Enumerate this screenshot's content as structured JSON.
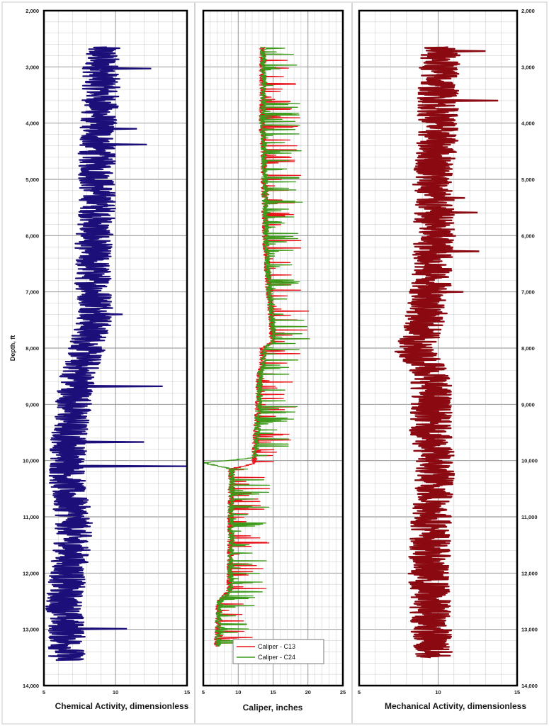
{
  "chart_data": [
    {
      "type": "line",
      "xlabel": "Chemical Activity, dimensionless",
      "ylabel": "Depth, ft",
      "xlim": [
        5,
        15
      ],
      "ylim": [
        2000,
        14000
      ],
      "y_inverted": true,
      "x_ticks": [
        "5",
        "10",
        "15"
      ],
      "y_ticks": [
        "2,000",
        "3,000",
        "4,000",
        "5,000",
        "6,000",
        "7,000",
        "8,000",
        "9,000",
        "10,000",
        "11,000",
        "12,000",
        "13,000",
        "14,000"
      ],
      "grid": true,
      "series": [
        {
          "color": "#1c0f7a",
          "depth": [
            2650,
            3000,
            3500,
            4000,
            4500,
            5000,
            5500,
            6000,
            6500,
            7000,
            7300,
            7600,
            8000,
            8500,
            9000,
            9500,
            10000,
            10500,
            11000,
            11500,
            12000,
            12500,
            13000,
            13550
          ],
          "values": [
            9.0,
            9.0,
            9.0,
            8.8,
            8.7,
            8.7,
            8.8,
            8.5,
            8.4,
            8.5,
            8.8,
            8.4,
            8.0,
            7.4,
            7.1,
            6.8,
            6.7,
            6.6,
            7.1,
            7.0,
            6.7,
            6.4,
            6.6,
            6.6
          ],
          "spikes": [
            {
              "depth": 3030,
              "value": 12.5
            },
            {
              "depth": 4100,
              "value": 11.5
            },
            {
              "depth": 4380,
              "value": 12.2
            },
            {
              "depth": 7400,
              "value": 10.5
            },
            {
              "depth": 8680,
              "value": 13.3
            },
            {
              "depth": 9670,
              "value": 12.0
            },
            {
              "depth": 10100,
              "value": 15.0
            },
            {
              "depth": 12990,
              "value": 10.8
            }
          ]
        }
      ]
    },
    {
      "type": "line",
      "xlabel": "Caliper, inches",
      "xlim": [
        5,
        25
      ],
      "ylim": [
        2000,
        14000
      ],
      "y_inverted": true,
      "x_ticks": [
        "5",
        "10",
        "15",
        "20",
        "25"
      ],
      "grid": true,
      "legend": {
        "placement": "bottom-right"
      },
      "series": [
        {
          "name": "Caliper - C13",
          "color": "#e8141c",
          "depth": [
            2650,
            3000,
            3500,
            4000,
            4500,
            5000,
            5500,
            6000,
            6500,
            7000,
            7500,
            7900,
            8000,
            8300,
            8500,
            9000,
            9500,
            9950,
            10050,
            10150,
            10500,
            11000,
            11500,
            12000,
            12300,
            12500,
            12800,
            13300
          ],
          "values": [
            13.5,
            13.5,
            13.5,
            13.4,
            13.6,
            13.7,
            13.8,
            13.9,
            14.1,
            14.4,
            14.8,
            14.9,
            13.5,
            13.5,
            13.0,
            12.9,
            12.6,
            12.3,
            12.5,
            9.0,
            9.0,
            8.9,
            8.9,
            8.8,
            8.8,
            7.3,
            7.1,
            7.0
          ]
        },
        {
          "name": "Caliper - C24",
          "color": "#3d9a1b",
          "depth": [
            2650,
            3000,
            3500,
            4000,
            4500,
            5000,
            5500,
            6000,
            6500,
            7000,
            7500,
            7900,
            8000,
            8300,
            8500,
            9000,
            9500,
            9950,
            10040,
            10150,
            10500,
            11000,
            11500,
            12000,
            12300,
            12500,
            12800,
            13300
          ],
          "values": [
            13.6,
            13.6,
            13.6,
            13.5,
            13.7,
            13.8,
            13.9,
            14.0,
            14.2,
            14.5,
            14.9,
            15.0,
            13.6,
            13.6,
            13.1,
            13.0,
            12.7,
            12.4,
            5.0,
            9.1,
            9.1,
            9.0,
            9.0,
            8.9,
            8.9,
            7.4,
            7.2,
            7.1
          ]
        }
      ]
    },
    {
      "type": "line",
      "xlabel": "Mechanical Activity, dimensionless",
      "xlim": [
        5,
        15
      ],
      "ylim": [
        2000,
        14000
      ],
      "y_inverted": true,
      "x_ticks": [
        "5",
        "10",
        "15"
      ],
      "y_ticks_right": [
        "2,000",
        "3,000",
        "4,000",
        "5,000",
        "6,000",
        "7,000",
        "8,000",
        "9,000",
        "10,000",
        "11,000",
        "12,000",
        "13,000",
        "14,000"
      ],
      "grid": true,
      "series": [
        {
          "color": "#8b0a12",
          "depth": [
            2650,
            3000,
            3500,
            4000,
            4500,
            5000,
            5500,
            6000,
            6500,
            7000,
            7500,
            7800,
            8000,
            8300,
            8500,
            9000,
            9500,
            10000,
            10500,
            11000,
            11500,
            12000,
            12500,
            13000,
            13500
          ],
          "values": [
            10.1,
            10.1,
            10.0,
            10.0,
            9.9,
            9.7,
            9.7,
            9.8,
            9.6,
            9.5,
            9.2,
            8.8,
            8.4,
            9.3,
            9.6,
            9.6,
            9.5,
            9.8,
            9.8,
            9.6,
            9.5,
            9.4,
            9.5,
            9.6,
            9.6
          ],
          "spikes": [
            {
              "depth": 2720,
              "value": 13.0
            },
            {
              "depth": 3600,
              "value": 13.8
            },
            {
              "depth": 5330,
              "value": 11.7
            },
            {
              "depth": 5590,
              "value": 12.5
            },
            {
              "depth": 6280,
              "value": 12.6
            },
            {
              "depth": 7000,
              "value": 11.6
            }
          ]
        }
      ]
    }
  ],
  "colors": {
    "grid": "#c8c8c8",
    "major_grid": "#8a8a8a",
    "frame": "#000000",
    "panel_border": "#a8a8a8"
  }
}
